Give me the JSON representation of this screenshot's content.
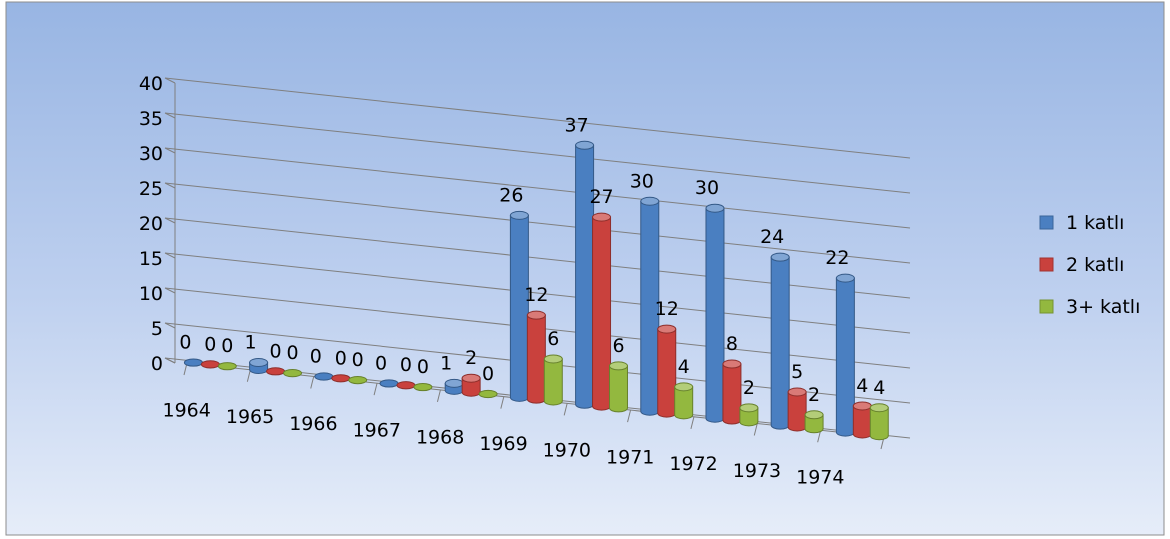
{
  "chart_data": {
    "type": "bar",
    "title": "",
    "xlabel": "",
    "ylabel": "",
    "categories": [
      "1964",
      "1965",
      "1966",
      "1967",
      "1968",
      "1969",
      "1970",
      "1971",
      "1972",
      "1973",
      "1974"
    ],
    "series": [
      {
        "name": "1 katlı",
        "color": "#4a7fc1",
        "values": [
          0,
          1,
          0,
          0,
          1,
          26,
          37,
          30,
          30,
          24,
          22
        ]
      },
      {
        "name": "2 katlı",
        "color": "#c9413d",
        "values": [
          0,
          0,
          0,
          0,
          2,
          12,
          27,
          12,
          8,
          5,
          4
        ]
      },
      {
        "name": "3+ katlı",
        "color": "#93b83f",
        "values": [
          0,
          0,
          0,
          0,
          0,
          6,
          6,
          4,
          2,
          2,
          4
        ]
      }
    ],
    "data_labels": [
      [
        "0",
        "1",
        "0",
        "0",
        "1",
        "26",
        "37",
        "30",
        "30",
        "24",
        "22"
      ],
      [
        "0",
        "0",
        "0",
        "0",
        "2",
        "12",
        "27",
        "12",
        "8",
        "5",
        "4"
      ],
      [
        "0",
        "0",
        "0",
        "0",
        "0",
        "6",
        "6",
        "4",
        "2",
        "2",
        "4"
      ]
    ],
    "ylim": [
      0,
      40
    ],
    "yticks": [
      "0",
      "5",
      "10",
      "15",
      "20",
      "25",
      "30",
      "35",
      "40"
    ],
    "grid": true,
    "projection": "3d",
    "legend_position": "right"
  }
}
